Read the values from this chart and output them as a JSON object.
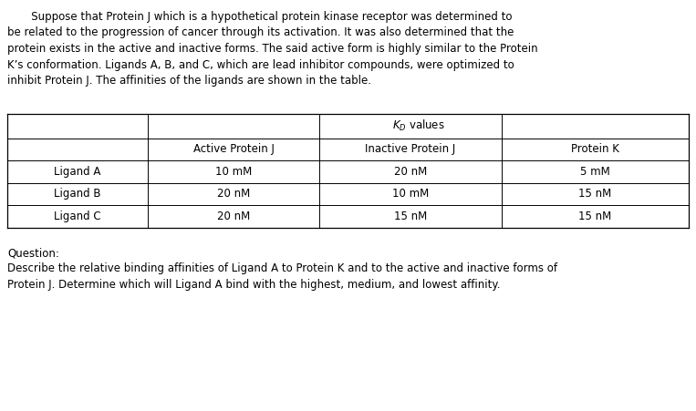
{
  "paragraph_lines": [
    "       Suppose that Protein J which is a hypothetical protein kinase receptor was determined to",
    "be related to the progression of cancer through its activation. It was also determined that the",
    "protein exists in the active and inactive forms. The said active form is highly similar to the Protein",
    "K’s conformation. Ligands A, B, and C, which are lead inhibitor compounds, were optimized to",
    "inhibit Protein J. The affinities of the ligands are shown in the table."
  ],
  "kd_header": "$K_D$ values",
  "col_headers": [
    "Active Protein J",
    "Inactive Protein J",
    "Protein K"
  ],
  "row_labels": [
    "Ligand A",
    "Ligand B",
    "Ligand C"
  ],
  "table_data": [
    [
      "10 mM",
      "20 nM",
      "5 mM"
    ],
    [
      "20 nM",
      "10 mM",
      "15 nM"
    ],
    [
      "20 nM",
      "15 nM",
      "15 nM"
    ]
  ],
  "question_label": "Question:",
  "question_lines": [
    "Describe the relative binding affinities of Ligand A to Protein K and to the active and inactive forms of",
    "Protein J. Determine which will Ligand A bind with the highest, medium, and lowest affinity."
  ],
  "bg_color": "#ffffff",
  "text_color": "#000000",
  "font_size": 8.5,
  "font_family": "DejaVu Sans"
}
